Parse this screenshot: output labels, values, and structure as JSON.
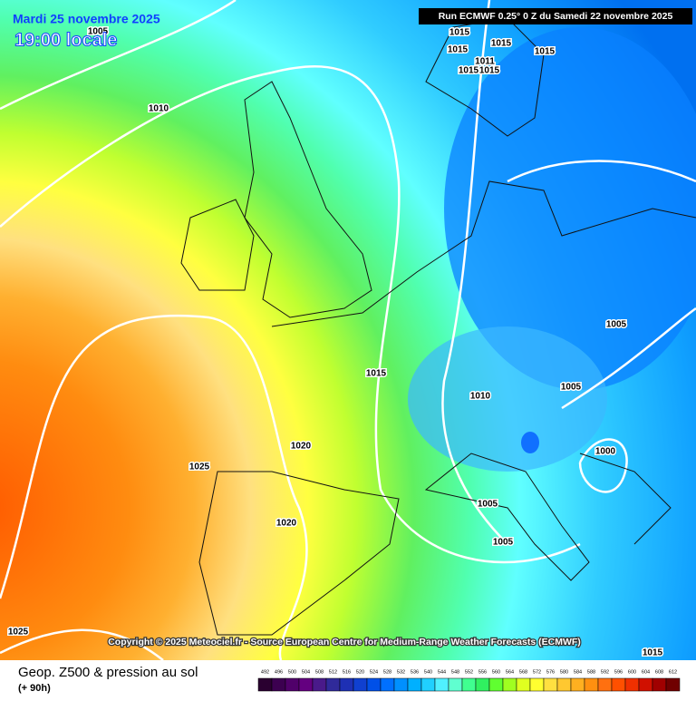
{
  "header": {
    "date": "Mardi 25 novembre 2025",
    "time": "19:00 locale",
    "run": "Run ECMWF 0.25° 0 Z du Samedi 22 novembre 2025"
  },
  "copyright": "Copyright © 2025 Meteociel.fr - Source European Centre for Medium-Range Weather Forecasts (ECMWF)",
  "footer": {
    "title": "Geop. Z500 & pression au sol",
    "lead": "(+ 90h)"
  },
  "isobar_labels": [
    "1005",
    "1010",
    "1015",
    "1015",
    "1015",
    "1015",
    "1011",
    "1015",
    "1015",
    "1005",
    "1015",
    "1010",
    "1005",
    "1000",
    "1020",
    "1025",
    "1005",
    "1005",
    "1020",
    "1025",
    "1015"
  ],
  "legend": {
    "labels": [
      "492",
      "496",
      "500",
      "504",
      "508",
      "512",
      "516",
      "520",
      "524",
      "528",
      "532",
      "536",
      "540",
      "544",
      "548",
      "552",
      "556",
      "560",
      "564",
      "568",
      "572",
      "576",
      "580",
      "584",
      "588",
      "592",
      "596",
      "600",
      "604",
      "608",
      "612"
    ],
    "colors": [
      "#2a0030",
      "#3c0050",
      "#50006a",
      "#640080",
      "#4a1a8a",
      "#302a9a",
      "#1e30b4",
      "#1040d0",
      "#0050e8",
      "#0070ff",
      "#0090ff",
      "#00b0ff",
      "#20d0ff",
      "#50f0ff",
      "#60ffd0",
      "#40ff90",
      "#30f060",
      "#60ff30",
      "#a0ff20",
      "#e0ff20",
      "#ffff30",
      "#ffe040",
      "#ffc830",
      "#ffb020",
      "#ff9010",
      "#ff7010",
      "#ff5000",
      "#f03000",
      "#d01000",
      "#a00000",
      "#700000"
    ]
  }
}
